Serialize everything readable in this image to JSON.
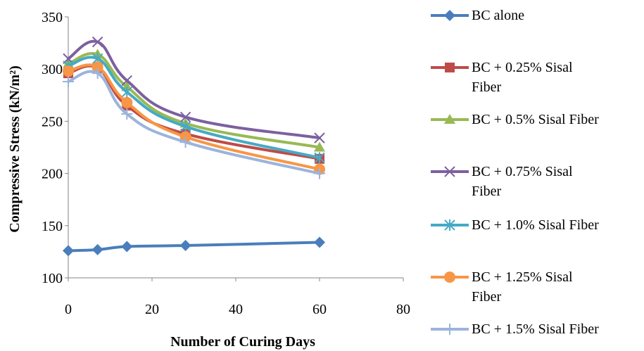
{
  "chart_data": {
    "type": "line",
    "title": "",
    "xlabel": "Number of Curing Days",
    "ylabel": "Compressive Stress (kN/m²)",
    "xlim": [
      0,
      80
    ],
    "ylim": [
      100,
      350
    ],
    "xticks": [
      0,
      20,
      40,
      60,
      80
    ],
    "yticks": [
      100,
      150,
      200,
      250,
      300,
      350
    ],
    "grid": false,
    "legend_position": "right",
    "x": [
      0,
      7,
      14,
      28,
      60
    ],
    "series": [
      {
        "name": "BC alone",
        "color": "#4a7ebb",
        "marker": "diamond",
        "values": [
          126,
          127,
          130,
          131,
          134
        ]
      },
      {
        "name": "BC + 0.25% Sisal Fiber",
        "color": "#be4b48",
        "marker": "square",
        "values": [
          296,
          301,
          265,
          238,
          214
        ]
      },
      {
        "name": "BC + 0.5% Sisal Fiber",
        "color": "#98b954",
        "marker": "triangle",
        "values": [
          305,
          314,
          283,
          248,
          225
        ]
      },
      {
        "name": "BC + 0.75% Sisal Fiber",
        "color": "#7d60a0",
        "marker": "x",
        "values": [
          310,
          326,
          289,
          254,
          234
        ]
      },
      {
        "name": "BC + 1.0% Sisal Fiber",
        "color": "#46aac5",
        "marker": "asterisk",
        "values": [
          303,
          310,
          278,
          245,
          215
        ]
      },
      {
        "name": "BC + 1.25% Sisal Fiber",
        "color": "#f79646",
        "marker": "circle",
        "values": [
          298,
          302,
          268,
          235,
          204
        ]
      },
      {
        "name": "BC + 1.5% Sisal Fiber",
        "color": "#9bb4dc",
        "marker": "plus",
        "values": [
          288,
          296,
          257,
          230,
          200
        ]
      }
    ],
    "legend_lines": [
      [
        "BC alone"
      ],
      [
        "BC + 0.25% Sisal",
        "Fiber"
      ],
      [
        "BC + 0.5% Sisal Fiber"
      ],
      [
        "BC + 0.75% Sisal",
        "Fiber"
      ],
      [
        "BC + 1.0% Sisal Fiber"
      ],
      [
        "BC + 1.25% Sisal",
        "Fiber"
      ],
      [
        "BC + 1.5% Sisal Fiber"
      ]
    ]
  }
}
